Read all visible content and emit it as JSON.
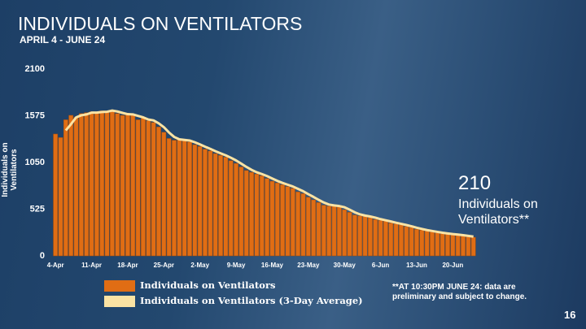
{
  "chart_data": {
    "type": "bar",
    "title": "INDIVIDUALS ON VENTILATORS",
    "subtitle": "APRIL 4 - JUNE 24",
    "y_label": "Individuals on Ventilators",
    "callout": {
      "label": "Individuals on Ventilators**"
    },
    "footnote": "**AT 10:30PM JUNE 24: data are preliminary and subject to change.",
    "page_number": "16",
    "categories": [
      "4-Apr",
      null,
      null,
      null,
      null,
      null,
      null,
      "11-Apr",
      null,
      null,
      null,
      null,
      null,
      null,
      "18-Apr",
      null,
      null,
      null,
      null,
      null,
      null,
      "25-Apr",
      null,
      null,
      null,
      null,
      null,
      null,
      "2-May",
      null,
      null,
      null,
      null,
      null,
      null,
      "9-May",
      null,
      null,
      null,
      null,
      null,
      null,
      "16-May",
      null,
      null,
      null,
      null,
      null,
      null,
      "23-May",
      null,
      null,
      null,
      null,
      null,
      null,
      "30-May",
      null,
      null,
      null,
      null,
      null,
      null,
      "6-Jun",
      null,
      null,
      null,
      null,
      null,
      null,
      "13-Jun",
      null,
      null,
      null,
      null,
      null,
      null,
      "20-Jun",
      null,
      null,
      null,
      null
    ],
    "series": [
      {
        "name": "Individuals on Ventilators",
        "type": "bar",
        "color": "#e06d14",
        "values": [
          1370,
          1330,
          1530,
          1580,
          1560,
          1600,
          1610,
          1620,
          1600,
          1630,
          1630,
          1640,
          1600,
          1580,
          1600,
          1590,
          1530,
          1550,
          1520,
          1500,
          1450,
          1390,
          1320,
          1300,
          1310,
          1300,
          1280,
          1250,
          1230,
          1200,
          1180,
          1150,
          1130,
          1110,
          1070,
          1040,
          1000,
          960,
          940,
          920,
          900,
          870,
          840,
          820,
          800,
          780,
          760,
          720,
          700,
          660,
          630,
          600,
          570,
          560,
          570,
          550,
          520,
          490,
          460,
          450,
          450,
          430,
          410,
          400,
          390,
          370,
          360,
          350,
          330,
          320,
          300,
          290,
          280,
          270,
          260,
          250,
          245,
          240,
          235,
          225,
          215,
          210
        ]
      },
      {
        "name": "Individuals on Ventilators (3-Day Average)",
        "type": "line",
        "color": "#fbe3a3",
        "values": [
          null,
          null,
          1410,
          1480,
          1557,
          1580,
          1590,
          1610,
          1610,
          1617,
          1620,
          1633,
          1623,
          1607,
          1593,
          1590,
          1573,
          1557,
          1533,
          1523,
          1490,
          1447,
          1387,
          1337,
          1310,
          1303,
          1297,
          1277,
          1253,
          1227,
          1203,
          1177,
          1153,
          1130,
          1103,
          1073,
          1037,
          1000,
          967,
          940,
          920,
          897,
          870,
          843,
          820,
          800,
          780,
          753,
          727,
          693,
          663,
          630,
          600,
          577,
          567,
          560,
          547,
          520,
          490,
          467,
          453,
          443,
          430,
          413,
          400,
          387,
          373,
          360,
          347,
          333,
          317,
          303,
          290,
          280,
          270,
          260,
          252,
          245,
          240,
          233,
          225,
          217
        ]
      }
    ],
    "ylim": [
      0,
      2100
    ],
    "yticks": [
      0,
      525,
      1050,
      1575,
      2100
    ],
    "grid": false
  }
}
